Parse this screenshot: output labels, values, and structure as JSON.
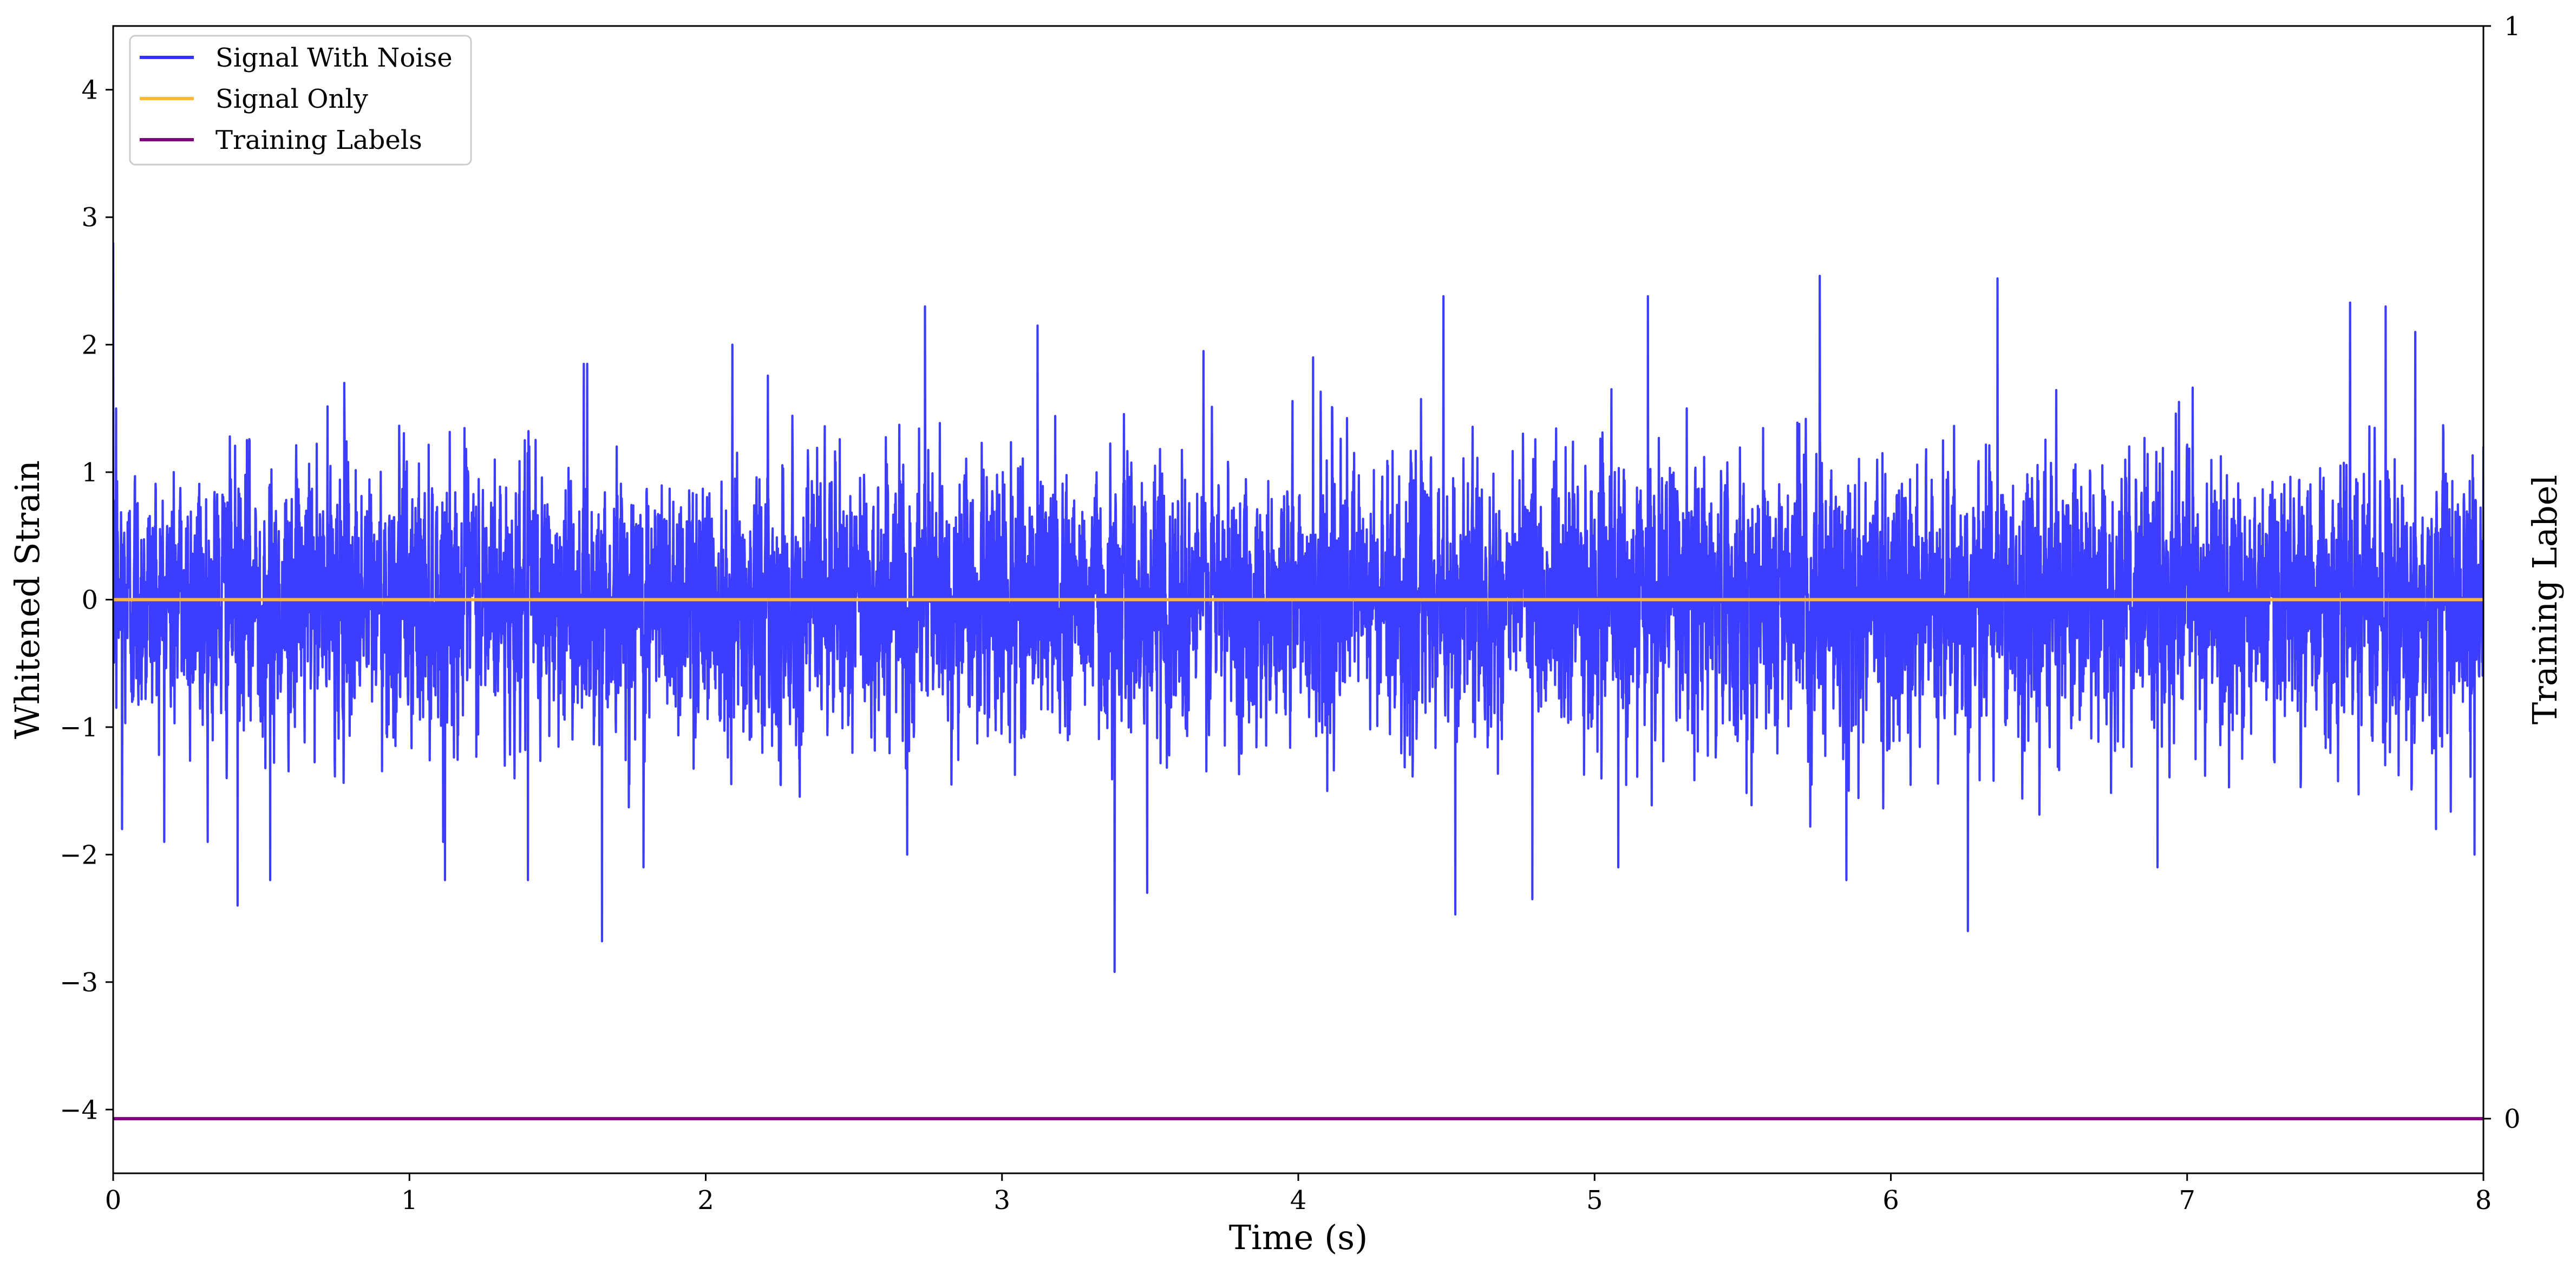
{
  "chart_data": {
    "type": "line",
    "title": "",
    "xlabel": "Time (s)",
    "ylabel": "Whitened Strain",
    "y2label": "Training Label",
    "xlim": [
      0,
      8
    ],
    "ylim": [
      -4.5,
      4.5
    ],
    "y2lim": [
      -0.05,
      1
    ],
    "x_ticks": [
      0,
      1,
      2,
      3,
      4,
      5,
      6,
      7,
      8
    ],
    "y_ticks": [
      -4,
      -3,
      -2,
      -1,
      0,
      1,
      2,
      3,
      4
    ],
    "y_tick_labels": [
      "−4",
      "−3",
      "−2",
      "−1",
      "0",
      "1",
      "2",
      "3",
      "4"
    ],
    "y2_ticks": [
      0,
      1
    ],
    "grid": false,
    "legend_position": "top-left",
    "series": [
      {
        "name": "Signal With Noise",
        "color": "#3333ff",
        "axis": "left",
        "style": "dense noise trace, roughly zero-mean, amplitude mostly within ±1.5",
        "points": [
          [
            0.0,
            2.8
          ],
          [
            0.01,
            1.5
          ],
          [
            0.03,
            -1.8
          ],
          [
            0.42,
            -2.4
          ],
          [
            0.53,
            -2.2
          ],
          [
            0.78,
            1.7
          ],
          [
            1.12,
            -2.2
          ],
          [
            1.4,
            -2.2
          ],
          [
            1.6,
            1.85
          ],
          [
            1.65,
            -2.68
          ],
          [
            1.79,
            -2.1
          ],
          [
            2.09,
            2.0
          ],
          [
            2.68,
            -2.0
          ],
          [
            2.74,
            2.3
          ],
          [
            3.12,
            2.15
          ],
          [
            3.38,
            -2.92
          ],
          [
            3.49,
            -2.3
          ],
          [
            3.68,
            1.95
          ],
          [
            4.05,
            1.9
          ],
          [
            4.49,
            2.38
          ],
          [
            4.53,
            -2.47
          ],
          [
            4.79,
            -2.35
          ],
          [
            5.08,
            -2.1
          ],
          [
            5.18,
            2.38
          ],
          [
            5.76,
            2.54
          ],
          [
            5.85,
            -2.2
          ],
          [
            6.26,
            -2.6
          ],
          [
            6.36,
            2.52
          ],
          [
            6.9,
            -2.1
          ],
          [
            7.55,
            2.33
          ],
          [
            7.67,
            2.3
          ],
          [
            7.77,
            2.1
          ],
          [
            7.84,
            -1.8
          ],
          [
            7.97,
            -2.0
          ],
          [
            8.0,
            1.2
          ]
        ]
      },
      {
        "name": "Signal Only",
        "color": "#ffb63b",
        "axis": "left",
        "x": [
          0,
          8
        ],
        "values": [
          0,
          0
        ]
      },
      {
        "name": "Training Labels",
        "color": "#800080",
        "axis": "right",
        "x": [
          0,
          8
        ],
        "values": [
          0,
          0
        ]
      }
    ]
  }
}
